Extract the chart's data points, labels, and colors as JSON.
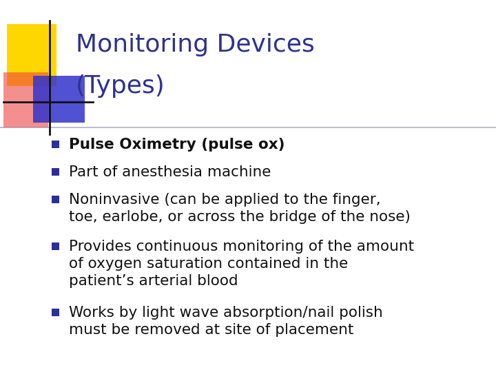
{
  "title_line1": "Monitoring Devices",
  "title_line2": "(Types)",
  "title_color": "#2E3191",
  "background_color": "#FFFFFF",
  "bullet_color": "#111111",
  "bullet_square_color": "#2E2E9B",
  "bullet_items": [
    {
      "text": "Pulse Oximetry (pulse ox)",
      "bold": true,
      "lines": 1
    },
    {
      "text": "Part of anesthesia machine",
      "bold": false,
      "lines": 1
    },
    {
      "text": "Noninvasive (can be applied to the finger,\ntoe, earlobe, or across the bridge of the nose)",
      "bold": false,
      "lines": 2
    },
    {
      "text": "Provides continuous monitoring of the amount\nof oxygen saturation contained in the\npatient’s arterial blood",
      "bold": false,
      "lines": 3
    },
    {
      "text": "Works by light wave absorption/nail polish\nmust be removed at site of placement",
      "bold": false,
      "lines": 2
    }
  ],
  "divider_color": "#B0B0C8",
  "decor_yellow_color": "#FFD700",
  "decor_red_color": "#EE4444",
  "decor_blue_color": "#3333CC",
  "decor_line_color": "#111111"
}
